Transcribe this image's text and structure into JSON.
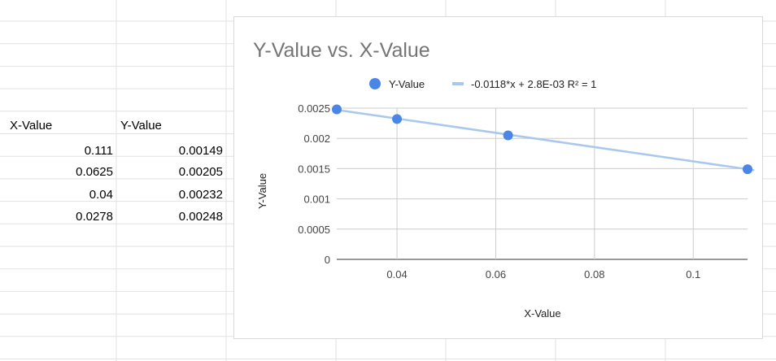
{
  "spreadsheet": {
    "headers": [
      "X-Value",
      "Y-Value"
    ],
    "rows": [
      [
        "0.111",
        "0.00149"
      ],
      [
        "0.0625",
        "0.00205"
      ],
      [
        "0.04",
        "0.00232"
      ],
      [
        "0.0278",
        "0.00248"
      ]
    ]
  },
  "colors": {
    "grid_line": "#e2e2e2",
    "point": "#4a86e8",
    "trendline": "#a8c8ee",
    "chart_grid": "#cccccc",
    "title": "#757575"
  },
  "chart_data": {
    "type": "scatter",
    "title": "Y-Value vs. X-Value",
    "xlabel": "X-Value",
    "ylabel": "Y-Value",
    "xlim": [
      0.0278,
      0.111
    ],
    "ylim": [
      0,
      0.0025
    ],
    "x_ticks": [
      "0.04",
      "0.06",
      "0.08",
      "0.1"
    ],
    "x_tick_values": [
      0.04,
      0.06,
      0.08,
      0.1
    ],
    "y_ticks": [
      "0",
      "0.0005",
      "0.001",
      "0.0015",
      "0.002",
      "0.0025"
    ],
    "y_tick_values": [
      0,
      0.0005,
      0.001,
      0.0015,
      0.002,
      0.0025
    ],
    "grid": true,
    "legend_position": "top",
    "series": [
      {
        "name": "Y-Value",
        "x": [
          0.111,
          0.0625,
          0.04,
          0.0278
        ],
        "y": [
          0.00149,
          0.00205,
          0.00232,
          0.00248
        ]
      }
    ],
    "trendline": {
      "label": "-0.0118*x + 2.8E-03 R² = 1",
      "slope": -0.0118,
      "intercept": 0.0028
    }
  }
}
